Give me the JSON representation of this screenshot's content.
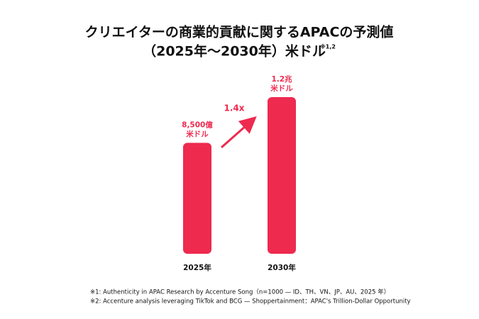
{
  "chart_data": {
    "type": "bar",
    "title": [
      "クリエイターの商業的貢献に関するAPACの予測値",
      "（2025年～2030年）米ドル"
    ],
    "title_note": "※1,2",
    "categories": [
      "2025年",
      "2030年"
    ],
    "values": [
      0.85,
      1.2
    ],
    "value_labels": [
      [
        "8,500億",
        "米ドル"
      ],
      [
        "1.2兆",
        "米ドル"
      ]
    ],
    "color": "#ee2a4f",
    "ylim": [
      0,
      1.2
    ],
    "annotation": "1.4x",
    "footnotes": [
      "※1: Authenticity in APAC Research by Accenture Song（n=1000 — ID、TH、VN、JP、AU、2025 年）",
      "※2: Accenture analysis leveraging TikTok and BCG — Shoppertainment：APAC's Trillion-Dollar Opportunity"
    ]
  }
}
